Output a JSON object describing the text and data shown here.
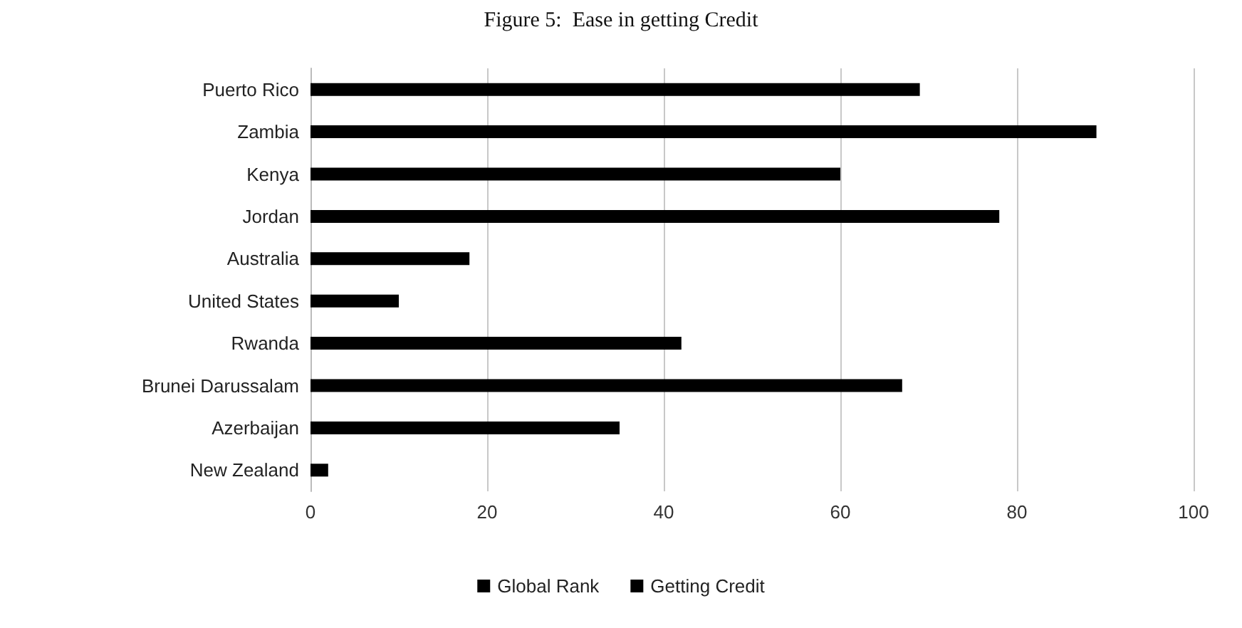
{
  "chart_data": {
    "type": "bar",
    "orientation": "horizontal",
    "title": "Figure 5:  Ease in getting Credit",
    "categories": [
      "Puerto Rico",
      "Zambia",
      "Kenya",
      "Jordan",
      "Australia",
      "United States",
      "Rwanda",
      "Brunei Darussalam",
      "Azerbaijan",
      "New Zealand"
    ],
    "series": [
      {
        "name": "Global Rank",
        "color": "#000000",
        "values": [
          69,
          89,
          60,
          78,
          18,
          10,
          42,
          67,
          35,
          2
        ]
      },
      {
        "name": "Getting Credit",
        "color": "#000000",
        "values": [
          null,
          null,
          null,
          null,
          null,
          null,
          null,
          null,
          null,
          null
        ]
      }
    ],
    "xlim": [
      0,
      100
    ],
    "xticks": [
      0,
      20,
      40,
      60,
      80,
      100
    ],
    "grid": "x",
    "legend": "bottom"
  }
}
